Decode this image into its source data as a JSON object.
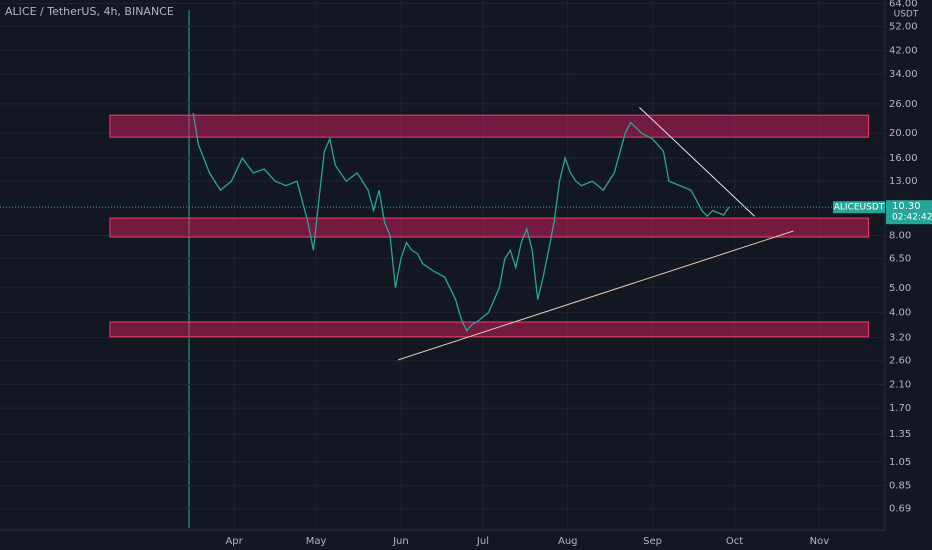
{
  "chart_data": {
    "type": "line",
    "title": "ALICE / TetherUS, 4h, BINANCE",
    "symbol": "ALICEUSDT",
    "y_unit": "USDT",
    "countdown": "02:42:42",
    "last_price": {
      "value": 10.3,
      "label": "10.30"
    },
    "log_scale": true,
    "grid": true,
    "color": "#26a69a",
    "x": [
      76,
      78,
      82,
      86,
      90,
      94,
      98,
      102,
      106,
      110,
      114,
      118,
      120,
      122,
      124,
      126,
      128,
      132,
      136,
      140,
      142,
      144,
      146,
      148,
      150,
      152,
      154,
      156,
      158,
      160,
      164,
      168,
      172,
      174,
      176,
      178,
      180,
      184,
      188,
      190,
      192,
      194,
      196,
      198,
      200,
      202,
      204,
      206,
      208,
      210,
      212,
      214,
      216,
      218,
      222,
      226,
      230,
      234,
      236,
      238,
      240,
      244,
      248,
      250,
      254,
      258,
      260,
      262,
      264,
      266,
      268,
      270,
      272
    ],
    "values": [
      24,
      18,
      14,
      12,
      13,
      16,
      14,
      14.5,
      13,
      12.5,
      13,
      9,
      7,
      11,
      17,
      19,
      15,
      13,
      14,
      12,
      10,
      12,
      9,
      8,
      5,
      6.5,
      7.5,
      7,
      6.8,
      6.2,
      5.8,
      5.5,
      4.5,
      3.8,
      3.4,
      3.6,
      3.7,
      4,
      5,
      6.5,
      7,
      6,
      7.5,
      8.5,
      7,
      4.5,
      5.5,
      7,
      9,
      13,
      16,
      14,
      13,
      12.5,
      13,
      12,
      14,
      20,
      22,
      21,
      20,
      19,
      17,
      13,
      12.5,
      12,
      11,
      10,
      9.5,
      10,
      9.8,
      9.6,
      10.3
    ],
    "xlim": [
      5.4,
      329
    ],
    "ylim": [
      0.57,
      66
    ],
    "xticks": [
      {
        "value": 91,
        "label": "Apr"
      },
      {
        "value": 121,
        "label": "May"
      },
      {
        "value": 152,
        "label": "Jun"
      },
      {
        "value": 182,
        "label": "Jul"
      },
      {
        "value": 213,
        "label": "Aug"
      },
      {
        "value": 244,
        "label": "Sep"
      },
      {
        "value": 274,
        "label": "Oct"
      },
      {
        "value": 305,
        "label": "Nov"
      }
    ],
    "yticks": [
      {
        "value": 64,
        "label": "64.00"
      },
      {
        "value": 52,
        "label": "52.00"
      },
      {
        "value": 42,
        "label": "42.00"
      },
      {
        "value": 34,
        "label": "34.00"
      },
      {
        "value": 26,
        "label": "26.00"
      },
      {
        "value": 20,
        "label": "20.00"
      },
      {
        "value": 16,
        "label": "16.00"
      },
      {
        "value": 13,
        "label": "13.00"
      },
      {
        "value": 8,
        "label": "8.00"
      },
      {
        "value": 6.5,
        "label": "6.50"
      },
      {
        "value": 5,
        "label": "5.00"
      },
      {
        "value": 4,
        "label": "4.00"
      },
      {
        "value": 3.2,
        "label": "3.20"
      },
      {
        "value": 2.6,
        "label": "2.60"
      },
      {
        "value": 2.1,
        "label": "2.10"
      },
      {
        "value": 1.7,
        "label": "1.70"
      },
      {
        "value": 1.35,
        "label": "1.35"
      },
      {
        "value": 1.05,
        "label": "1.05"
      },
      {
        "value": 0.85,
        "label": "0.85"
      },
      {
        "value": 0.69,
        "label": "0.69"
      }
    ],
    "zones": [
      {
        "x": [
          45.6,
          323
        ],
        "low": 19.3,
        "high": 23.5
      },
      {
        "x": [
          45.6,
          323
        ],
        "low": 7.88,
        "high": 9.34
      },
      {
        "x": [
          45.6,
          323
        ],
        "low": 3.22,
        "high": 3.68
      }
    ],
    "trendlines": [
      {
        "x": [
          151,
          295.5
        ],
        "y": [
          2.62,
          8.32
        ],
        "color": "#e8c8b0"
      },
      {
        "x": [
          239.2,
          281.3
        ],
        "y": [
          25.2,
          9.5
        ],
        "color": "#e0e3eb"
      }
    ]
  }
}
